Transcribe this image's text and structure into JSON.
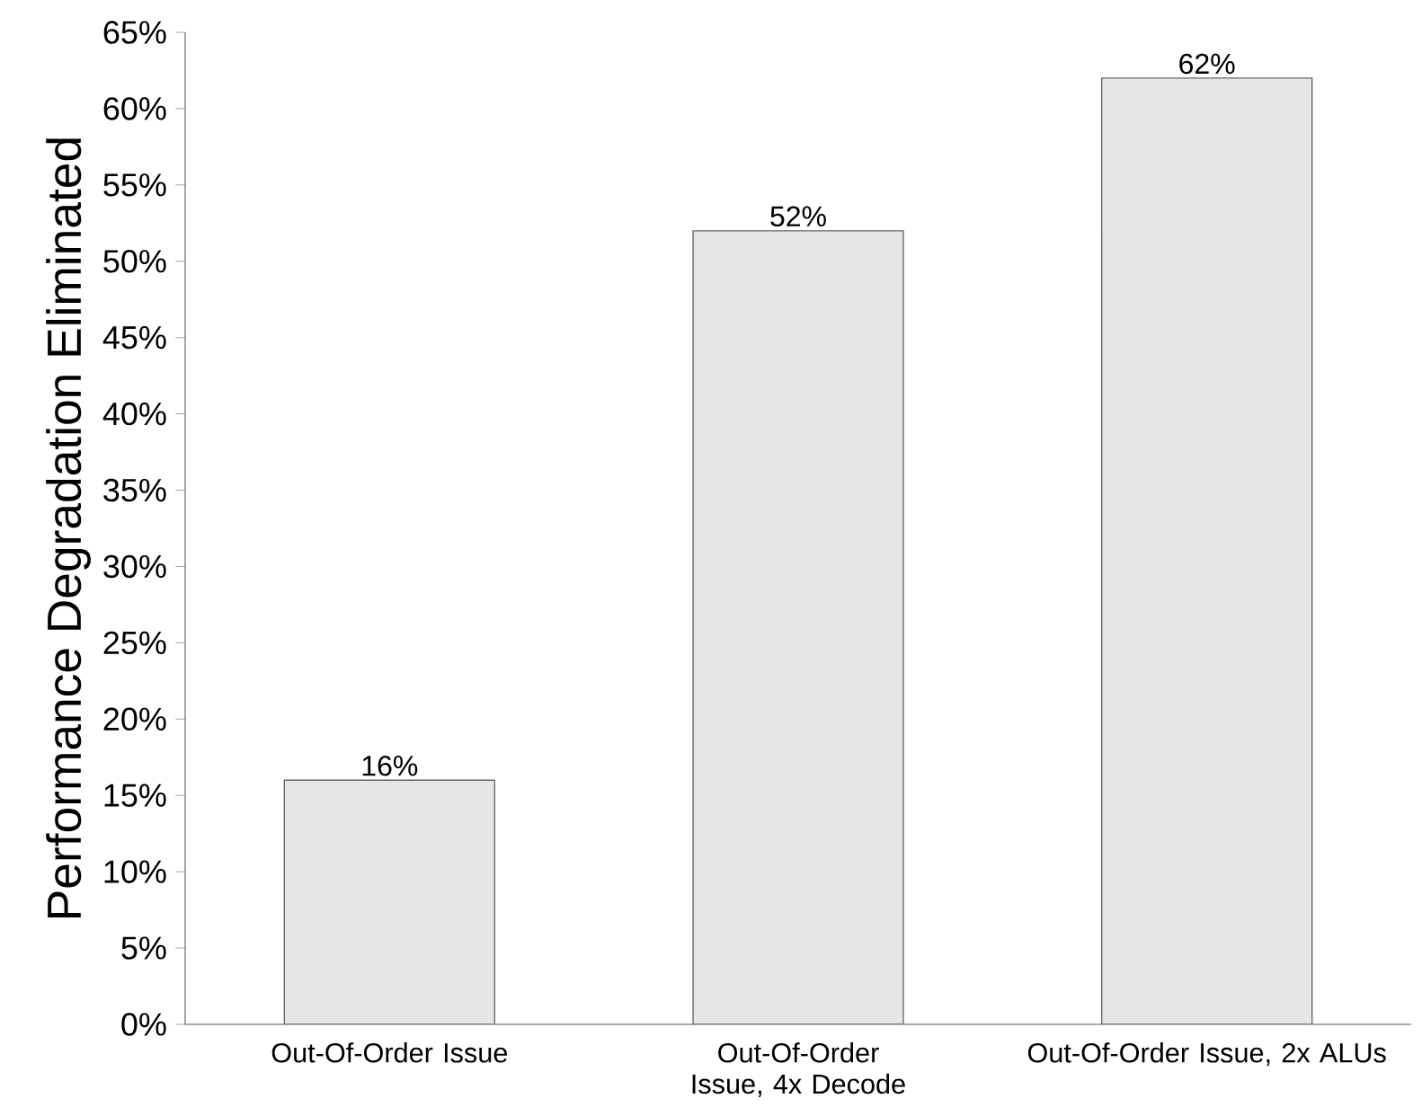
{
  "chart_data": {
    "type": "bar",
    "ylabel": "Performance Degradation Eliminated",
    "categories": [
      "Out-Of-Order Issue",
      "Out-Of-Order Issue, 4x Decode",
      "Out-Of-Order Issue, 2x ALUs"
    ],
    "values": [
      16,
      52,
      62
    ],
    "value_labels": [
      "16%",
      "52%",
      "62%"
    ],
    "color": "#e6e6e6",
    "ylim": [
      0,
      65
    ],
    "yticks": [
      {
        "value": 0,
        "label": "0%"
      },
      {
        "value": 5,
        "label": "5%"
      },
      {
        "value": 10,
        "label": "10%"
      },
      {
        "value": 15,
        "label": "15%"
      },
      {
        "value": 20,
        "label": "20%"
      },
      {
        "value": 25,
        "label": "25%"
      },
      {
        "value": 30,
        "label": "30%"
      },
      {
        "value": 35,
        "label": "35%"
      },
      {
        "value": 40,
        "label": "40%"
      },
      {
        "value": 45,
        "label": "45%"
      },
      {
        "value": 50,
        "label": "50%"
      },
      {
        "value": 55,
        "label": "55%"
      },
      {
        "value": 60,
        "label": "60%"
      },
      {
        "value": 65,
        "label": "65%"
      }
    ],
    "line_style": "solid"
  }
}
